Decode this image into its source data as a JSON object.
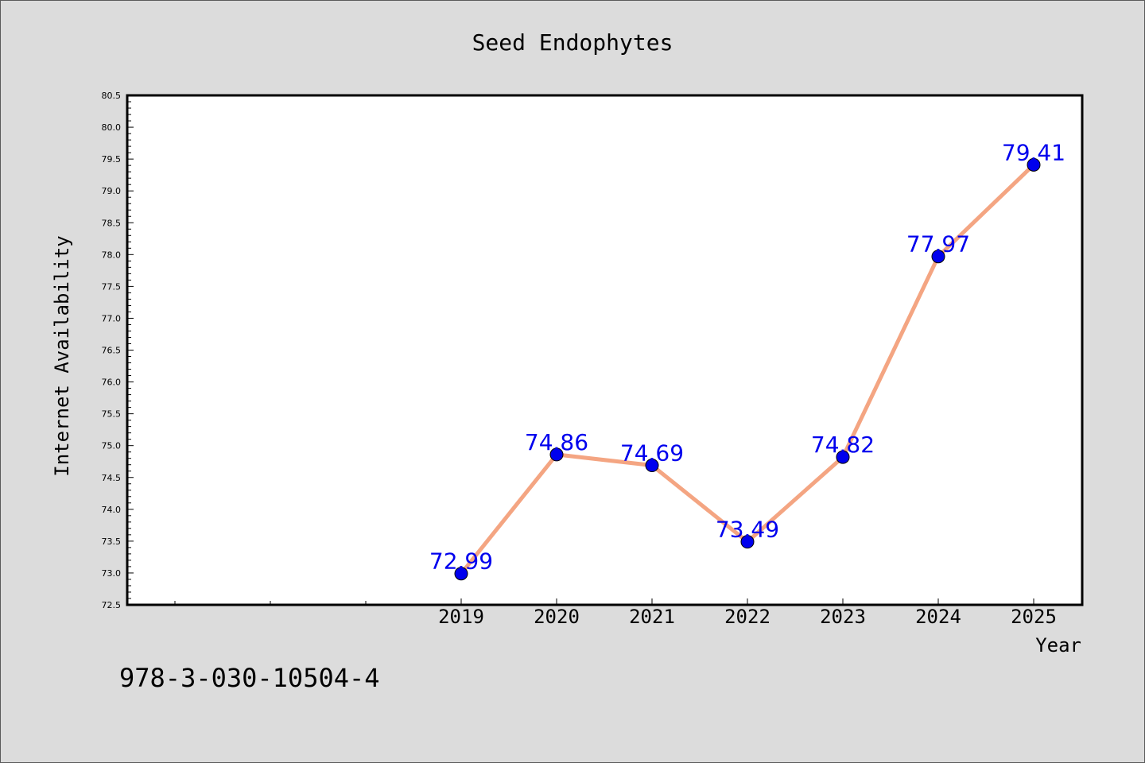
{
  "chart_data": {
    "type": "line",
    "title": "Seed Endophytes",
    "xlabel": "Year",
    "ylabel": "Internet Availability",
    "x": [
      "2019",
      "2020",
      "2021",
      "2022",
      "2023",
      "2024",
      "2025"
    ],
    "series": [
      {
        "values": [
          72.99,
          74.86,
          74.69,
          73.49,
          74.82,
          77.97,
          79.41
        ]
      }
    ],
    "data_labels": [
      "72.99",
      "74.86",
      "74.69",
      "73.49",
      "74.82",
      "77.97",
      "79.41"
    ],
    "ylim": [
      72.5,
      80.5
    ],
    "yticks": [
      "72.5",
      "73.0",
      "73.5",
      "74.0",
      "74.5",
      "75.0",
      "75.5",
      "76.0",
      "76.5",
      "77.0",
      "77.5",
      "78.0",
      "78.5",
      "79.0",
      "79.5",
      "80.0",
      "80.5"
    ],
    "grid": false,
    "line_color": "#f4a582",
    "marker_color": "#0000ee",
    "label_color": "#0000ee"
  },
  "footer": {
    "isbn": "978-3-030-10504-4"
  }
}
